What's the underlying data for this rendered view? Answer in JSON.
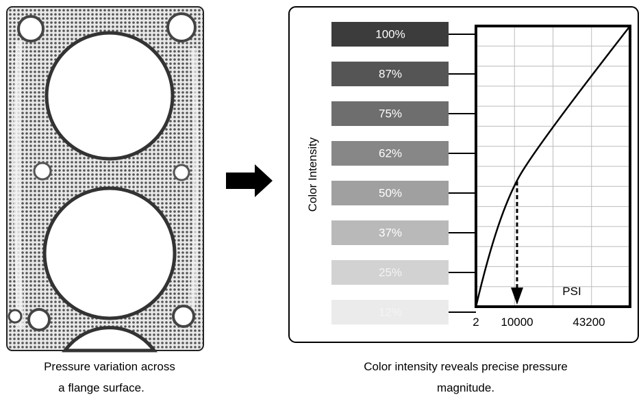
{
  "left_panel": {
    "caption_lines": [
      "Pressure variation across",
      "a flange surface."
    ]
  },
  "right_panel": {
    "y_axis_label": "Color Intensity",
    "x_axis_label": "PSI",
    "intensity_labels": [
      "100%",
      "87%",
      "75%",
      "62%",
      "50%",
      "37%",
      "25%",
      "12%"
    ],
    "x_tick_labels": [
      "2",
      "10000",
      "43200"
    ],
    "caption_lines": [
      "Color intensity reveals precise pressure",
      "magnitude."
    ]
  }
}
